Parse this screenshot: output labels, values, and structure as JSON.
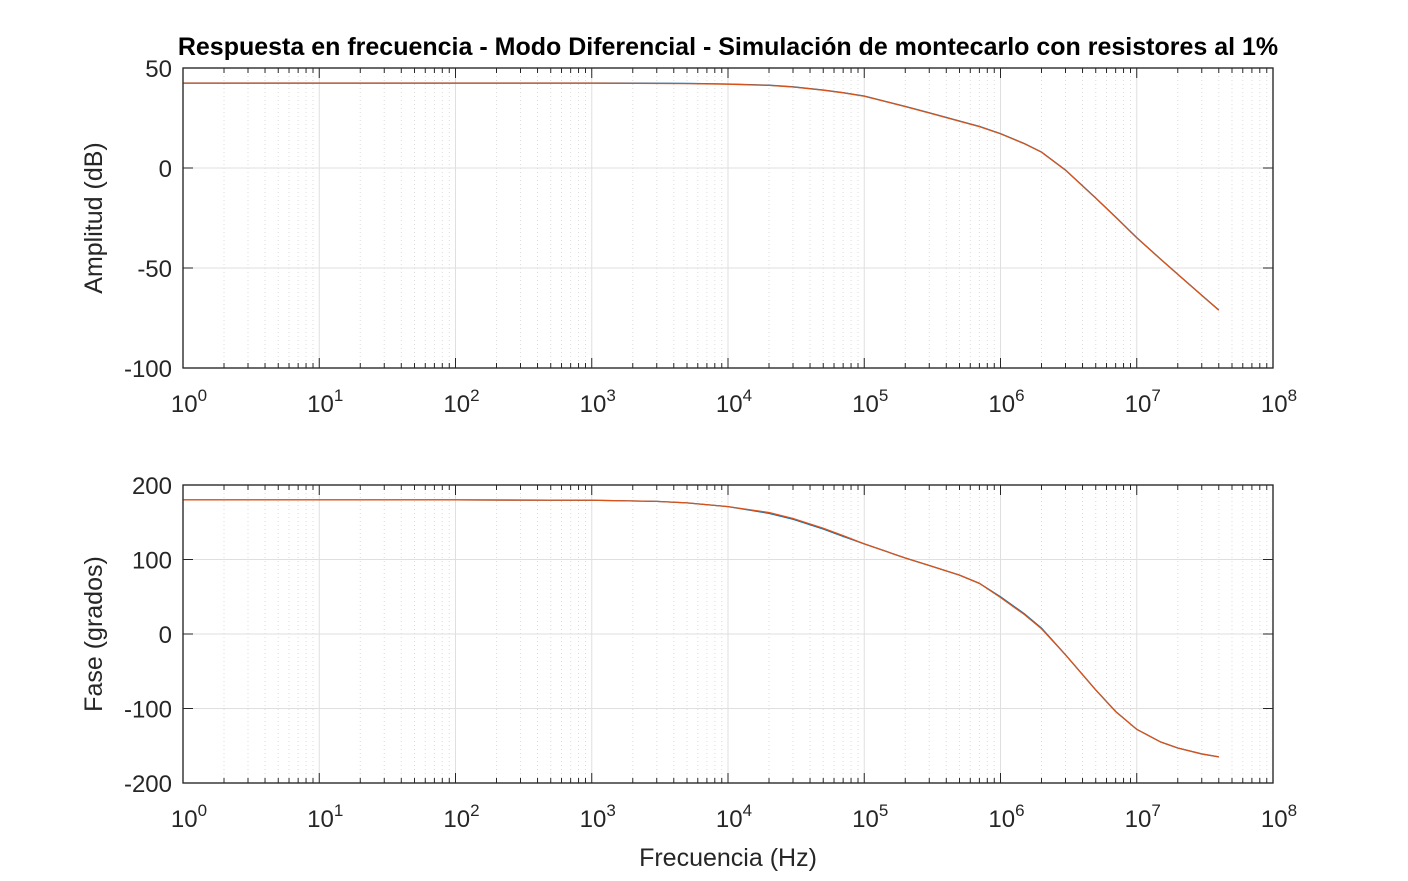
{
  "chart_data": [
    {
      "type": "line",
      "title": "Respuesta en frecuencia - Modo Diferencial - Simulación de montecarlo con resistores al 1%",
      "xlabel": "",
      "ylabel": "Amplitud (dB)",
      "xscale": "log",
      "xlim": [
        1,
        100000000
      ],
      "ylim": [
        -100,
        50
      ],
      "grid": true,
      "x_ticks": [
        {
          "base": "10",
          "exp": "0"
        },
        {
          "base": "10",
          "exp": "1"
        },
        {
          "base": "10",
          "exp": "2"
        },
        {
          "base": "10",
          "exp": "3"
        },
        {
          "base": "10",
          "exp": "4"
        },
        {
          "base": "10",
          "exp": "5"
        },
        {
          "base": "10",
          "exp": "6"
        },
        {
          "base": "10",
          "exp": "7"
        },
        {
          "base": "10",
          "exp": "8"
        }
      ],
      "y_ticks": [
        "-100",
        "-50",
        "0",
        "50"
      ],
      "series": [
        {
          "color": "#0072BD",
          "x": [
            1,
            10,
            100,
            1000,
            5000,
            10000,
            20000,
            30000,
            50000,
            70000,
            100000,
            200000,
            300000,
            500000,
            700000,
            1000000,
            1500000,
            2000000,
            3000000,
            5000000,
            7000000,
            10000000,
            15000000,
            20000000,
            30000000,
            40000000
          ],
          "y": [
            42.5,
            42.5,
            42.5,
            42.5,
            42.3,
            42.0,
            41.4,
            40.6,
            39.0,
            37.7,
            36.0,
            30.8,
            27.6,
            23.5,
            20.8,
            17.2,
            12.2,
            8.0,
            -1.0,
            -15.0,
            -24.5,
            -34.8,
            -45.6,
            -53.1,
            -63.6,
            -71.0
          ]
        },
        {
          "color": "#D95319",
          "x": [
            1,
            10,
            100,
            1000,
            5000,
            10000,
            20000,
            30000,
            50000,
            70000,
            100000,
            200000,
            300000,
            500000,
            700000,
            1000000,
            1500000,
            2000000,
            3000000,
            5000000,
            7000000,
            10000000,
            15000000,
            20000000,
            30000000,
            40000000
          ],
          "y": [
            42.4,
            42.4,
            42.4,
            42.4,
            42.2,
            41.9,
            41.3,
            40.5,
            38.9,
            37.6,
            35.9,
            30.7,
            27.5,
            23.4,
            20.7,
            17.1,
            12.1,
            7.9,
            -1.1,
            -15.1,
            -24.6,
            -34.9,
            -45.7,
            -53.2,
            -63.7,
            -71.1
          ]
        }
      ]
    },
    {
      "type": "line",
      "title": "",
      "xlabel": "Frecuencia (Hz)",
      "ylabel": "Fase (grados)",
      "xscale": "log",
      "xlim": [
        1,
        100000000
      ],
      "ylim": [
        -200,
        200
      ],
      "grid": true,
      "x_ticks": [
        {
          "base": "10",
          "exp": "0"
        },
        {
          "base": "10",
          "exp": "1"
        },
        {
          "base": "10",
          "exp": "2"
        },
        {
          "base": "10",
          "exp": "3"
        },
        {
          "base": "10",
          "exp": "4"
        },
        {
          "base": "10",
          "exp": "5"
        },
        {
          "base": "10",
          "exp": "6"
        },
        {
          "base": "10",
          "exp": "7"
        },
        {
          "base": "10",
          "exp": "8"
        }
      ],
      "y_ticks": [
        "-200",
        "-100",
        "0",
        "100",
        "200"
      ],
      "series": [
        {
          "color": "#0072BD",
          "x": [
            1,
            10,
            100,
            1000,
            3000,
            5000,
            10000,
            20000,
            30000,
            50000,
            70000,
            100000,
            200000,
            300000,
            500000,
            700000,
            1000000,
            1500000,
            2000000,
            3000000,
            5000000,
            7000000,
            10000000,
            15000000,
            20000000,
            30000000,
            40000000
          ],
          "y": [
            180,
            180,
            180,
            179.5,
            178,
            176,
            171,
            162,
            154,
            141,
            131,
            121,
            102,
            92,
            79,
            68,
            50,
            27,
            8,
            -28,
            -75,
            -104,
            -128,
            -145,
            -153,
            -161,
            -165
          ]
        },
        {
          "color": "#D95319",
          "x": [
            1,
            10,
            100,
            1000,
            3000,
            5000,
            10000,
            20000,
            30000,
            50000,
            70000,
            100000,
            200000,
            300000,
            500000,
            700000,
            1000000,
            1500000,
            2000000,
            3000000,
            5000000,
            7000000,
            10000000,
            15000000,
            20000000,
            30000000,
            40000000
          ],
          "y": [
            180,
            180,
            180,
            179.5,
            178,
            176,
            171,
            163,
            155,
            142,
            132,
            121,
            102,
            92,
            79,
            68,
            49,
            26,
            7,
            -28,
            -75,
            -104,
            -128,
            -145,
            -153,
            -161,
            -165
          ]
        }
      ]
    }
  ]
}
